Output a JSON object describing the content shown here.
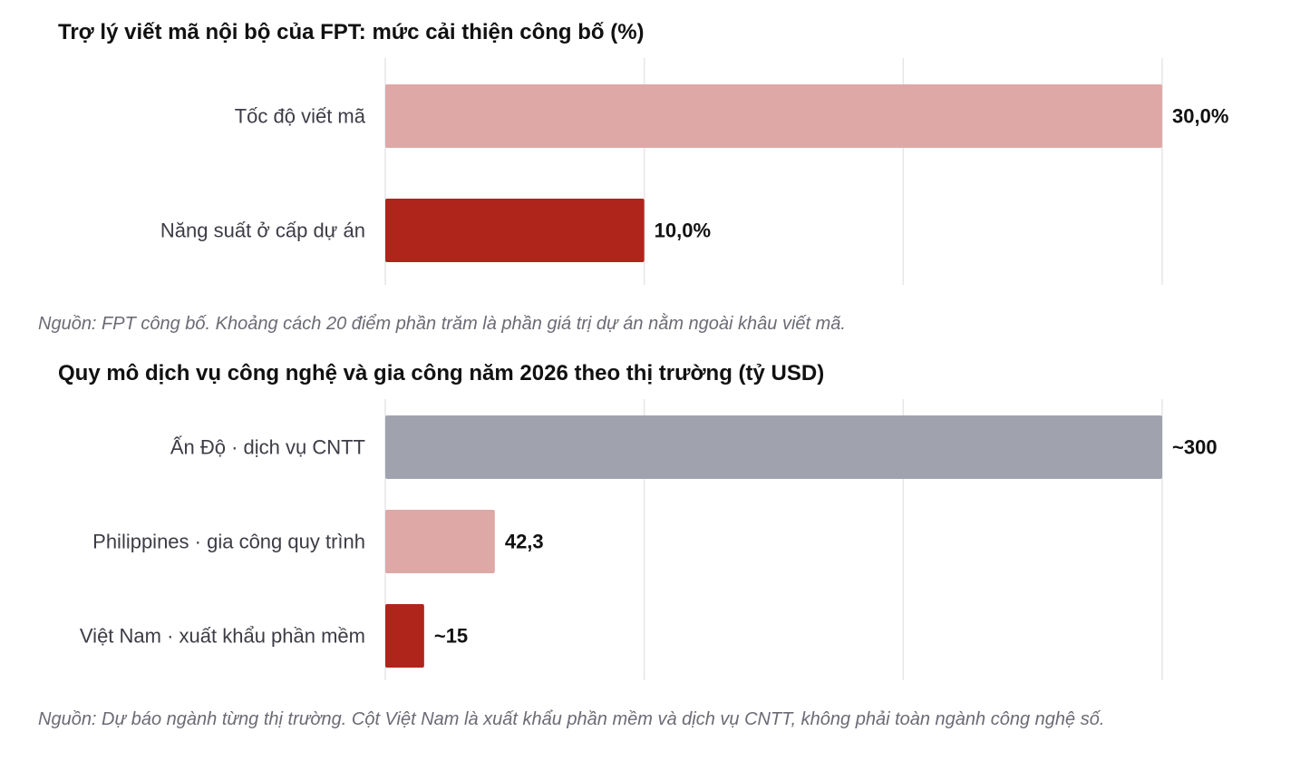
{
  "chart_data": [
    {
      "type": "bar",
      "orientation": "horizontal",
      "title": "Trợ lý viết mã nội bộ của FPT: mức cải thiện công bố (%)",
      "categories": [
        "Tốc độ viết mã",
        "Năng suất ở cấp dự án"
      ],
      "values": [
        30.0,
        10.0
      ],
      "value_labels": [
        "30,0%",
        "10,0%"
      ],
      "colors": [
        "#dea8a6",
        "#b0251b"
      ],
      "xlim": [
        0,
        30
      ],
      "grid": true,
      "source": "Nguồn: FPT công bố. Khoảng cách 20 điểm phần trăm là phần giá trị dự án nằm ngoài khâu viết mã."
    },
    {
      "type": "bar",
      "orientation": "horizontal",
      "title": "Quy mô dịch vụ công nghệ và gia công năm 2026 theo thị trường (tỷ USD)",
      "categories": [
        "Ấn Độ · dịch vụ CNTT",
        "Philippines · gia công quy trình",
        "Việt Nam · xuất khẩu phần mềm"
      ],
      "values": [
        300,
        42.3,
        15
      ],
      "value_labels": [
        "~300",
        "42,3",
        "~15"
      ],
      "colors": [
        "#a0a3ad",
        "#dea8a6",
        "#b0251b"
      ],
      "xlim": [
        0,
        300
      ],
      "grid": true,
      "source": "Nguồn: Dự báo ngành từng thị trường. Cột Việt Nam là xuất khẩu phần mềm và dịch vụ CNTT, không phải toàn ngành công nghệ số."
    }
  ]
}
